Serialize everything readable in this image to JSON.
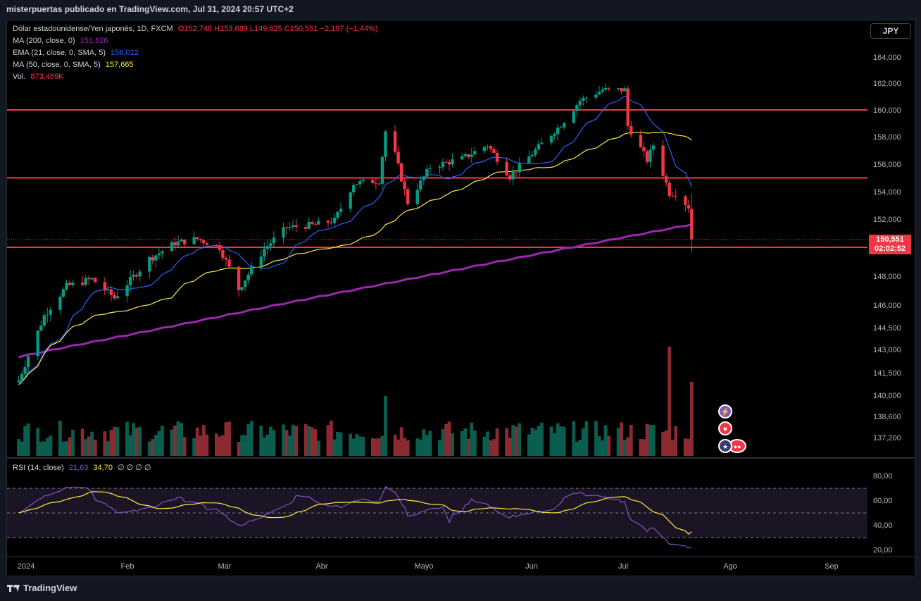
{
  "header": {
    "publisher_line": "misterpuertas publicado en TradingView.com, Jul 31, 2024 20:57 UTC+2"
  },
  "legend": {
    "symbol": "Dólar estadounidense/Yen japonés, 1D, FXCM",
    "ohlc": "O152,748 H153,889 L149,625 C150,551 −2,197 (−1,44%)",
    "ma200_label": "MA (200, close, 0)",
    "ma200_value": "151,626",
    "ema21_label": "EMA (21, close, 0, SMA, 5)",
    "ema21_value": "156,012",
    "ma50_label": "MA (50, close, 0, SMA, 5)",
    "ma50_value": "157,665",
    "vol_label": "Vol.",
    "vol_value": "873,469K",
    "rsi_label": "RSI (14, close)",
    "rsi_value": "21,63",
    "rsi_ma_value": "34,70",
    "rsi_extra": "∅ ∅ ∅ ∅"
  },
  "currency_button": "JPY",
  "last_price": {
    "price": "150,551",
    "countdown": "02:02:52"
  },
  "footer": {
    "brand": "TradingView"
  },
  "colors": {
    "up": "#089981",
    "down": "#f23645",
    "ma200": "#9c27b0",
    "ema21": "#2962ff",
    "ma50": "#ffeb3b",
    "rsi": "#7e57c2",
    "hline": "#f23645",
    "background": "#000000"
  },
  "chart_data": {
    "type": "candlestick",
    "y_ticks": [
      "164,000",
      "162,000",
      "160,000",
      "158,000",
      "156,000",
      "154,000",
      "152,000",
      "148,000",
      "146,000",
      "144,500",
      "143,000",
      "141,500",
      "140,000",
      "138,600",
      "137,200"
    ],
    "x_ticks": [
      "2024",
      "Feb",
      "Mar",
      "Abr",
      "Mayo",
      "Jun",
      "Jul",
      "Ago",
      "Sep"
    ],
    "horizontal_lines": [
      160.0,
      155.0,
      150.0
    ],
    "close_anchors": [
      [
        "2024-01-02",
        141.0
      ],
      [
        "2024-01-10",
        145.3
      ],
      [
        "2024-01-17",
        147.3
      ],
      [
        "2024-01-25",
        147.8
      ],
      [
        "2024-02-01",
        146.5
      ],
      [
        "2024-02-12",
        149.2
      ],
      [
        "2024-02-20",
        150.3
      ],
      [
        "2024-02-27",
        150.6
      ],
      [
        "2024-03-05",
        150.0
      ],
      [
        "2024-03-11",
        147.1
      ],
      [
        "2024-03-19",
        149.9
      ],
      [
        "2024-03-26",
        151.4
      ],
      [
        "2024-04-04",
        151.6
      ],
      [
        "2024-04-10",
        151.9
      ],
      [
        "2024-04-16",
        154.6
      ],
      [
        "2024-04-24",
        154.8
      ],
      [
        "2024-04-26",
        158.4
      ],
      [
        "2024-04-29",
        156.7
      ],
      [
        "2024-05-03",
        153.2
      ],
      [
        "2024-05-10",
        155.8
      ],
      [
        "2024-05-20",
        156.4
      ],
      [
        "2024-05-28",
        157.4
      ],
      [
        "2024-06-04",
        155.1
      ],
      [
        "2024-06-12",
        157.0
      ],
      [
        "2024-06-20",
        158.9
      ],
      [
        "2024-06-26",
        160.7
      ],
      [
        "2024-07-03",
        161.5
      ],
      [
        "2024-07-10",
        161.5
      ],
      [
        "2024-07-11",
        158.8
      ],
      [
        "2024-07-17",
        156.3
      ],
      [
        "2024-07-19",
        157.4
      ],
      [
        "2024-07-24",
        153.9
      ],
      [
        "2024-07-26",
        153.9
      ],
      [
        "2024-07-30",
        152.9
      ],
      [
        "2024-07-31",
        150.551
      ]
    ],
    "indicators_last": {
      "MA200": 151.626,
      "EMA21": 156.012,
      "MA50": 157.665
    },
    "volume_last": "873,469K",
    "rsi": {
      "y_ticks": [
        "80,00",
        "60,00",
        "40,00",
        "20,00"
      ],
      "levels": [
        70,
        50,
        30
      ],
      "last": 21.63,
      "ma_last": 34.7
    }
  }
}
